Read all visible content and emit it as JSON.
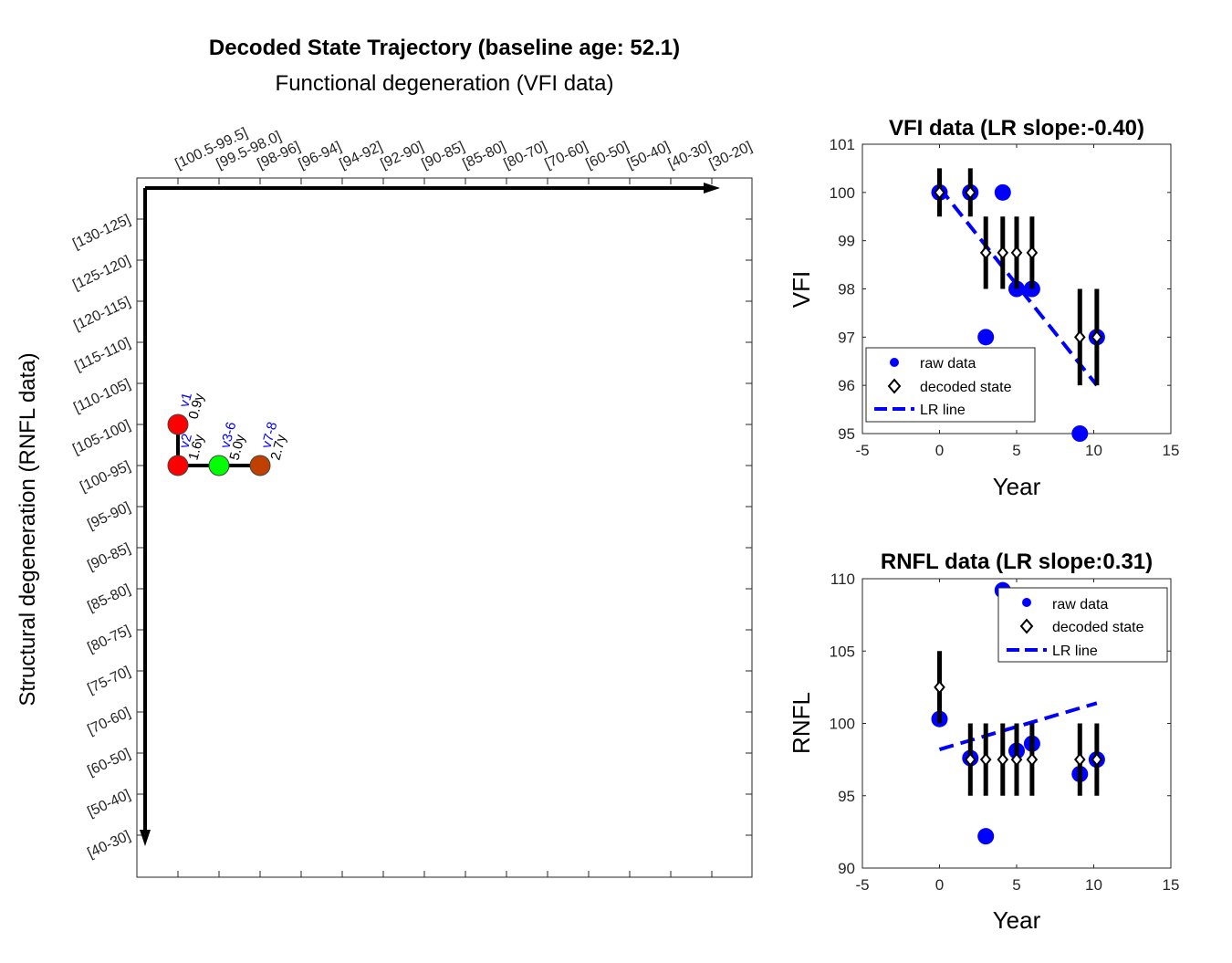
{
  "chart_data": [
    {
      "type": "scatter",
      "title": "Decoded State Trajectory (baseline age: 52.1)",
      "subtitle": "Functional degeneration (VFI data)",
      "xlabel": "Functional degeneration (VFI data)",
      "ylabel": "Structural degeneration (RNFL data)",
      "x_ticks": [
        "[100.5-99.5]",
        "[99.5-98.0]",
        "[98-96]",
        "[96-94]",
        "[94-92]",
        "[92-90]",
        "[90-85]",
        "[85-80]",
        "[80-70]",
        "[70-60]",
        "[60-50]",
        "[50-40]",
        "[40-30]",
        "[30-20]"
      ],
      "y_ticks": [
        "[130-125]",
        "[125-120]",
        "[120-115]",
        "[115-110]",
        "[110-105]",
        "[105-100]",
        "[100-95]",
        "[95-90]",
        "[90-85]",
        "[85-80]",
        "[80-75]",
        "[75-70]",
        "[70-60]",
        "[60-50]",
        "[50-40]",
        "[40-30]"
      ],
      "states": [
        {
          "visit": "v1",
          "duration": "0.9y",
          "x": 1,
          "y": 6,
          "color": "#ff0000"
        },
        {
          "visit": "v2",
          "duration": "1.6y",
          "x": 1,
          "y": 7,
          "color": "#ff0000"
        },
        {
          "visit": "v3-6",
          "duration": "5.0y",
          "x": 2,
          "y": 7,
          "color": "#00ff00"
        },
        {
          "visit": "v7-8",
          "duration": "2.7y",
          "x": 3,
          "y": 7,
          "color": "#c04000"
        }
      ]
    },
    {
      "type": "scatter",
      "title": "VFI data (LR slope:-0.40)",
      "xlabel": "Year",
      "ylabel": "VFI",
      "xlim": [
        -5,
        15
      ],
      "ylim": [
        95,
        101
      ],
      "x_tick_labels": [
        "-5",
        "0",
        "5",
        "10",
        "15"
      ],
      "y_tick_labels": [
        "95",
        "96",
        "97",
        "98",
        "99",
        "100",
        "101"
      ],
      "raw": {
        "x": [
          0,
          2,
          3,
          4.1,
          5,
          6,
          9.1,
          10.2
        ],
        "y": [
          100,
          100,
          97,
          100,
          98,
          98,
          95,
          97
        ]
      },
      "decoded": {
        "x": [
          0,
          2,
          3,
          4.1,
          5,
          6,
          9.1,
          10.2
        ],
        "y": [
          100,
          100,
          98.75,
          98.75,
          98.75,
          98.75,
          97,
          97
        ],
        "low": [
          99.5,
          99.5,
          98,
          98,
          98,
          98,
          96,
          96
        ],
        "high": [
          100.5,
          100.5,
          99.5,
          99.5,
          99.5,
          99.5,
          98,
          98
        ]
      },
      "lr": {
        "x": [
          0,
          10.2
        ],
        "y": [
          100.1,
          96.0
        ]
      },
      "legend": [
        "raw data",
        "decoded state",
        "LR line"
      ]
    },
    {
      "type": "scatter",
      "title": "RNFL data (LR slope:0.31)",
      "xlabel": "Year",
      "ylabel": "RNFL",
      "xlim": [
        -5,
        15
      ],
      "ylim": [
        90,
        110
      ],
      "x_tick_labels": [
        "-5",
        "0",
        "5",
        "10",
        "15"
      ],
      "y_tick_labels": [
        "90",
        "95",
        "100",
        "105",
        "110"
      ],
      "raw": {
        "x": [
          0,
          2,
          3,
          4.1,
          5,
          6,
          9.1,
          10.2
        ],
        "y": [
          100.3,
          97.6,
          92.2,
          109.2,
          98.1,
          98.6,
          96.5,
          97.5
        ]
      },
      "decoded": {
        "x": [
          0,
          2,
          3,
          4.1,
          5,
          6,
          9.1,
          10.2
        ],
        "y": [
          102.5,
          97.5,
          97.5,
          97.5,
          97.5,
          97.5,
          97.5,
          97.5
        ],
        "low": [
          100,
          95,
          95,
          95,
          95,
          95,
          95,
          95
        ],
        "high": [
          105,
          100,
          100,
          100,
          100,
          100,
          100,
          100
        ]
      },
      "lr": {
        "x": [
          0,
          10.2
        ],
        "y": [
          98.2,
          101.4
        ]
      },
      "legend": [
        "raw data",
        "decoded state",
        "LR line"
      ]
    }
  ]
}
